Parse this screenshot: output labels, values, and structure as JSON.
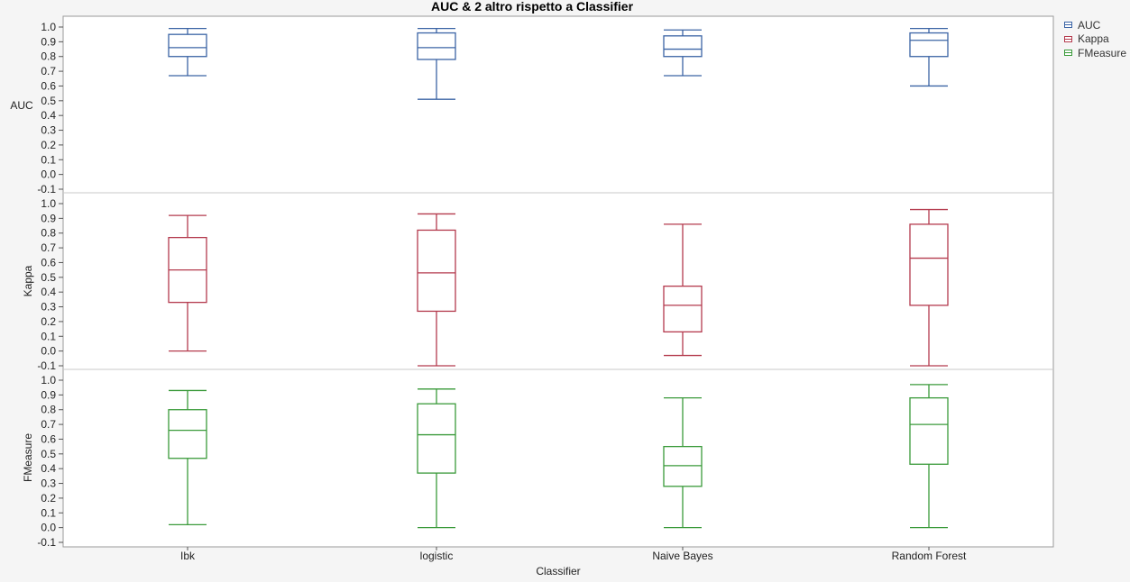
{
  "chart_data": {
    "type": "boxplot",
    "title": "AUC & 2 altro rispetto a Classifier",
    "xlabel": "Classifier",
    "categories": [
      "Ibk",
      "logistic",
      "Naive Bayes",
      "Random Forest"
    ],
    "y_ticks": [
      "-0.1",
      "0.0",
      "0.1",
      "0.2",
      "0.3",
      "0.4",
      "0.5",
      "0.6",
      "0.7",
      "0.8",
      "0.9",
      "1.0"
    ],
    "ylim": [
      -0.1,
      1.05
    ],
    "legend_position": "top-right",
    "panels": [
      {
        "name": "AUC",
        "color": "#3b64a5",
        "boxes": [
          {
            "min": 0.67,
            "q1": 0.8,
            "median": 0.86,
            "q3": 0.95,
            "max": 0.99
          },
          {
            "min": 0.51,
            "q1": 0.78,
            "median": 0.86,
            "q3": 0.96,
            "max": 0.99
          },
          {
            "min": 0.67,
            "q1": 0.8,
            "median": 0.85,
            "q3": 0.94,
            "max": 0.98
          },
          {
            "min": 0.6,
            "q1": 0.8,
            "median": 0.91,
            "q3": 0.96,
            "max": 0.99
          }
        ]
      },
      {
        "name": "Kappa",
        "color": "#b43a4d",
        "boxes": [
          {
            "min": 0.0,
            "q1": 0.33,
            "median": 0.55,
            "q3": 0.77,
            "max": 0.92
          },
          {
            "min": -0.1,
            "q1": 0.27,
            "median": 0.53,
            "q3": 0.82,
            "max": 0.93
          },
          {
            "min": -0.03,
            "q1": 0.13,
            "median": 0.31,
            "q3": 0.44,
            "max": 0.86
          },
          {
            "min": -0.1,
            "q1": 0.31,
            "median": 0.63,
            "q3": 0.86,
            "max": 0.96
          }
        ]
      },
      {
        "name": "FMeasure",
        "color": "#3a9a3a",
        "boxes": [
          {
            "min": 0.02,
            "q1": 0.47,
            "median": 0.66,
            "q3": 0.8,
            "max": 0.93
          },
          {
            "min": 0.0,
            "q1": 0.37,
            "median": 0.63,
            "q3": 0.84,
            "max": 0.94
          },
          {
            "min": 0.0,
            "q1": 0.28,
            "median": 0.42,
            "q3": 0.55,
            "max": 0.88
          },
          {
            "min": 0.0,
            "q1": 0.43,
            "median": 0.7,
            "q3": 0.88,
            "max": 0.97
          }
        ]
      }
    ]
  }
}
